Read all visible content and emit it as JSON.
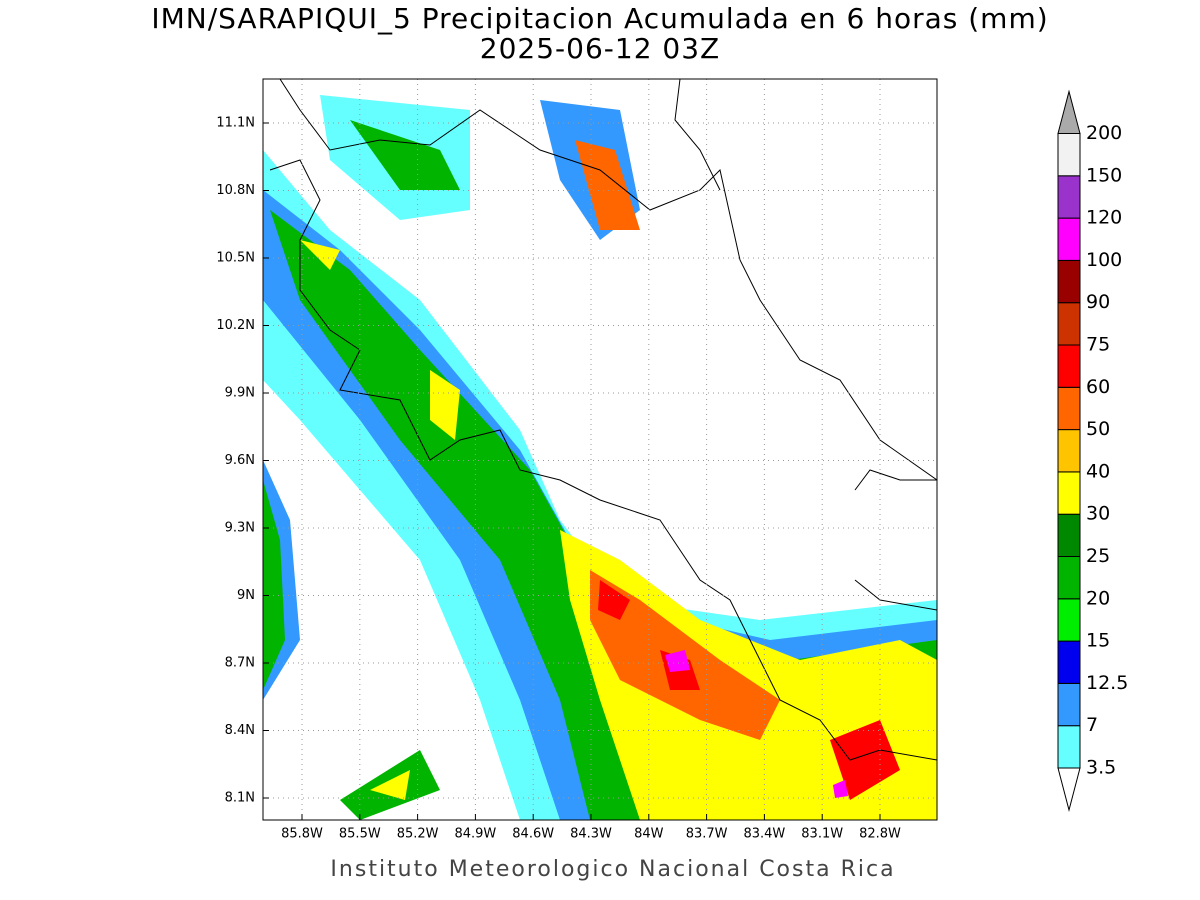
{
  "title": "IMN/SARAPIQUI_5 Precipitacion Acumulada en 6 horas (mm)",
  "subtitle": "2025-06-12 03Z",
  "footer": "Instituto Meteorologico Nacional Costa Rica",
  "map": {
    "lat_ticks": [
      "11.1N",
      "10.8N",
      "10.5N",
      "10.2N",
      "9.9N",
      "9.6N",
      "9.3N",
      "9N",
      "8.7N",
      "8.4N",
      "8.1N"
    ],
    "lon_ticks": [
      "85.8W",
      "85.5W",
      "85.2W",
      "84.9W",
      "84.6W",
      "84.3W",
      "84W",
      "83.7W",
      "83.4W",
      "83.1W",
      "82.8W"
    ]
  },
  "colorbar": {
    "labels": [
      "3.5",
      "7",
      "12.5",
      "15",
      "20",
      "25",
      "30",
      "40",
      "50",
      "60",
      "75",
      "90",
      "100",
      "120",
      "150",
      "200"
    ],
    "colors": [
      "#66ffff",
      "#3399ff",
      "#0000ee",
      "#00ee00",
      "#00b400",
      "#008800",
      "#ffff00",
      "#ffc400",
      "#ff6600",
      "#ff0000",
      "#cc3300",
      "#990000",
      "#ff00ff",
      "#9933cc",
      "#f2f2f2"
    ],
    "under_color": "#ffffff",
    "over_color": "#aaaaaa"
  }
}
